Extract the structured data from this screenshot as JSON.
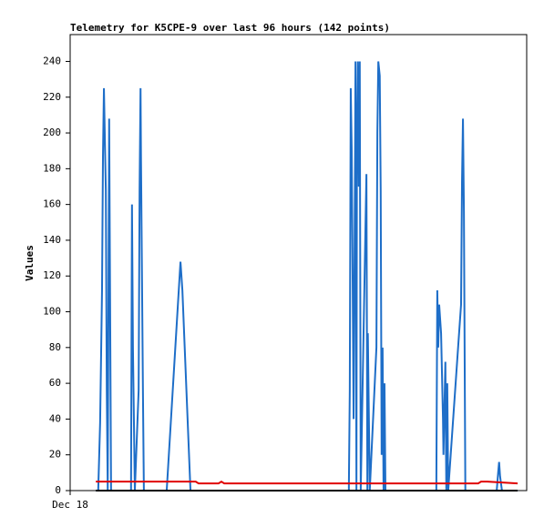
{
  "chart_data": {
    "type": "line",
    "title": "Telemetry for K5CPE-9 over last 96 hours (142 points)",
    "ylabel": "Values",
    "xlim": [
      0,
      96
    ],
    "xticks": [
      {
        "value": 0,
        "label": "Dec 18"
      }
    ],
    "ylim": [
      0,
      255
    ],
    "yticks": [
      0,
      20,
      40,
      60,
      80,
      100,
      120,
      140,
      160,
      180,
      200,
      220,
      240
    ],
    "series": [
      {
        "color": "#1e6ec8",
        "x": [
          5.4,
          5.9,
          6.3,
          6.7,
          6.9,
          7.1,
          7.5,
          7.7,
          7.9,
          8.2,
          8.4,
          8.6,
          12.8,
          13.0,
          13.2,
          13.4,
          13.6,
          14.4,
          14.6,
          14.8,
          14.9,
          15.3,
          15.5,
          20.3,
          23.2,
          23.6,
          25.3,
          58.6,
          58.8,
          59.0,
          59.2,
          59.4,
          59.6,
          59.8,
          60.0,
          60.2,
          60.3,
          60.5,
          60.7,
          60.9,
          61.1,
          62.3,
          62.5,
          62.6,
          63.0,
          64.4,
          64.6,
          64.8,
          65.1,
          65.3,
          65.5,
          65.7,
          65.9,
          66.1,
          66.3,
          77.0,
          77.2,
          77.4,
          77.6,
          78.0,
          78.4,
          78.5,
          78.9,
          79.1,
          79.3,
          79.5,
          82.2,
          82.4,
          82.6,
          82.8,
          83.0,
          83.1,
          89.7,
          90.0,
          90.2,
          90.4,
          90.8,
          94.1
        ],
        "values": [
          0,
          0,
          38,
          112,
          187,
          225,
          168,
          56,
          0,
          208,
          104,
          0,
          0,
          160,
          80,
          40,
          0,
          56,
          168,
          225,
          184,
          56,
          0,
          0,
          128,
          112,
          0,
          0,
          56,
          225,
          192,
          120,
          40,
          128,
          240,
          0,
          190,
          240,
          170,
          240,
          0,
          177,
          0,
          88,
          0,
          80,
          200,
          240,
          232,
          168,
          20,
          80,
          0,
          60,
          0,
          0,
          112,
          80,
          104,
          88,
          40,
          20,
          72,
          0,
          60,
          0,
          104,
          173,
          208,
          156,
          52,
          0,
          0,
          10,
          16,
          8,
          0,
          0
        ]
      },
      {
        "color": "#e00000",
        "x": [
          5.4,
          26.4,
          27.0,
          31.2,
          31.8,
          32.4,
          85.8,
          86.4,
          87.2,
          87.7,
          94.1
        ],
        "values": [
          5,
          5,
          4,
          4,
          5,
          4,
          4,
          5,
          5,
          5,
          4
        ]
      },
      {
        "color": "#000000",
        "x": [
          5.4,
          94.1
        ],
        "values": [
          0,
          0
        ]
      }
    ]
  }
}
